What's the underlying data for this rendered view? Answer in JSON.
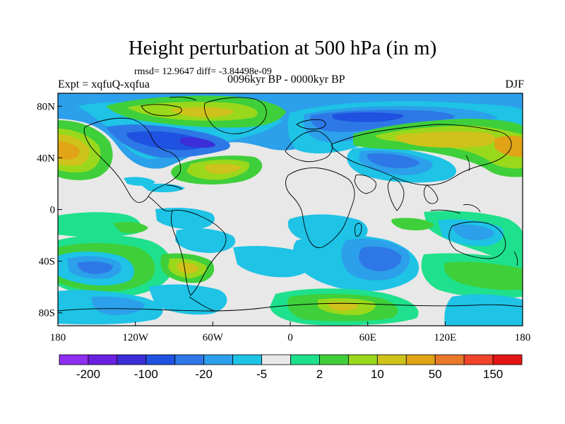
{
  "title": "Height perturbation at 500 hPa (in m)",
  "stats": "rmsd= 12.9647 diff= -3.84498e-09",
  "expt": "Expt = xqfuQ-xqfua",
  "period": "0096kyr BP - 0000kyr BP",
  "season": "DJF",
  "map": {
    "lat_range": [
      -90,
      90
    ],
    "lon_range": [
      -180,
      180
    ],
    "lat_ticks": [
      {
        "value": 80,
        "label": "80N"
      },
      {
        "value": 40,
        "label": "40N"
      },
      {
        "value": 0,
        "label": "0"
      },
      {
        "value": -40,
        "label": "40S"
      },
      {
        "value": -80,
        "label": "80S"
      }
    ],
    "lon_ticks": [
      {
        "value": -180,
        "label": "180"
      },
      {
        "value": -120,
        "label": "120W"
      },
      {
        "value": -60,
        "label": "60W"
      },
      {
        "value": 0,
        "label": "0"
      },
      {
        "value": 60,
        "label": "60E"
      },
      {
        "value": 120,
        "label": "120E"
      },
      {
        "value": 180,
        "label": "180"
      }
    ]
  },
  "colorbar": {
    "colors": [
      "#8f2ff0",
      "#6a20e0",
      "#3b2ed8",
      "#1f52e0",
      "#2d78e6",
      "#2ca0ea",
      "#1ec3e6",
      "#e8e8e8",
      "#1fe08c",
      "#3fcf3a",
      "#9ad81c",
      "#cfc21a",
      "#e0a416",
      "#e8782a",
      "#f0442a",
      "#e21414"
    ],
    "labels": [
      {
        "boundary": 1,
        "label": "-200"
      },
      {
        "boundary": 3,
        "label": "-100"
      },
      {
        "boundary": 5,
        "label": "-20"
      },
      {
        "boundary": 7,
        "label": "-5"
      },
      {
        "boundary": 9,
        "label": "2"
      },
      {
        "boundary": 11,
        "label": "10"
      },
      {
        "boundary": 13,
        "label": "50"
      },
      {
        "boundary": 15,
        "label": "150"
      }
    ]
  }
}
